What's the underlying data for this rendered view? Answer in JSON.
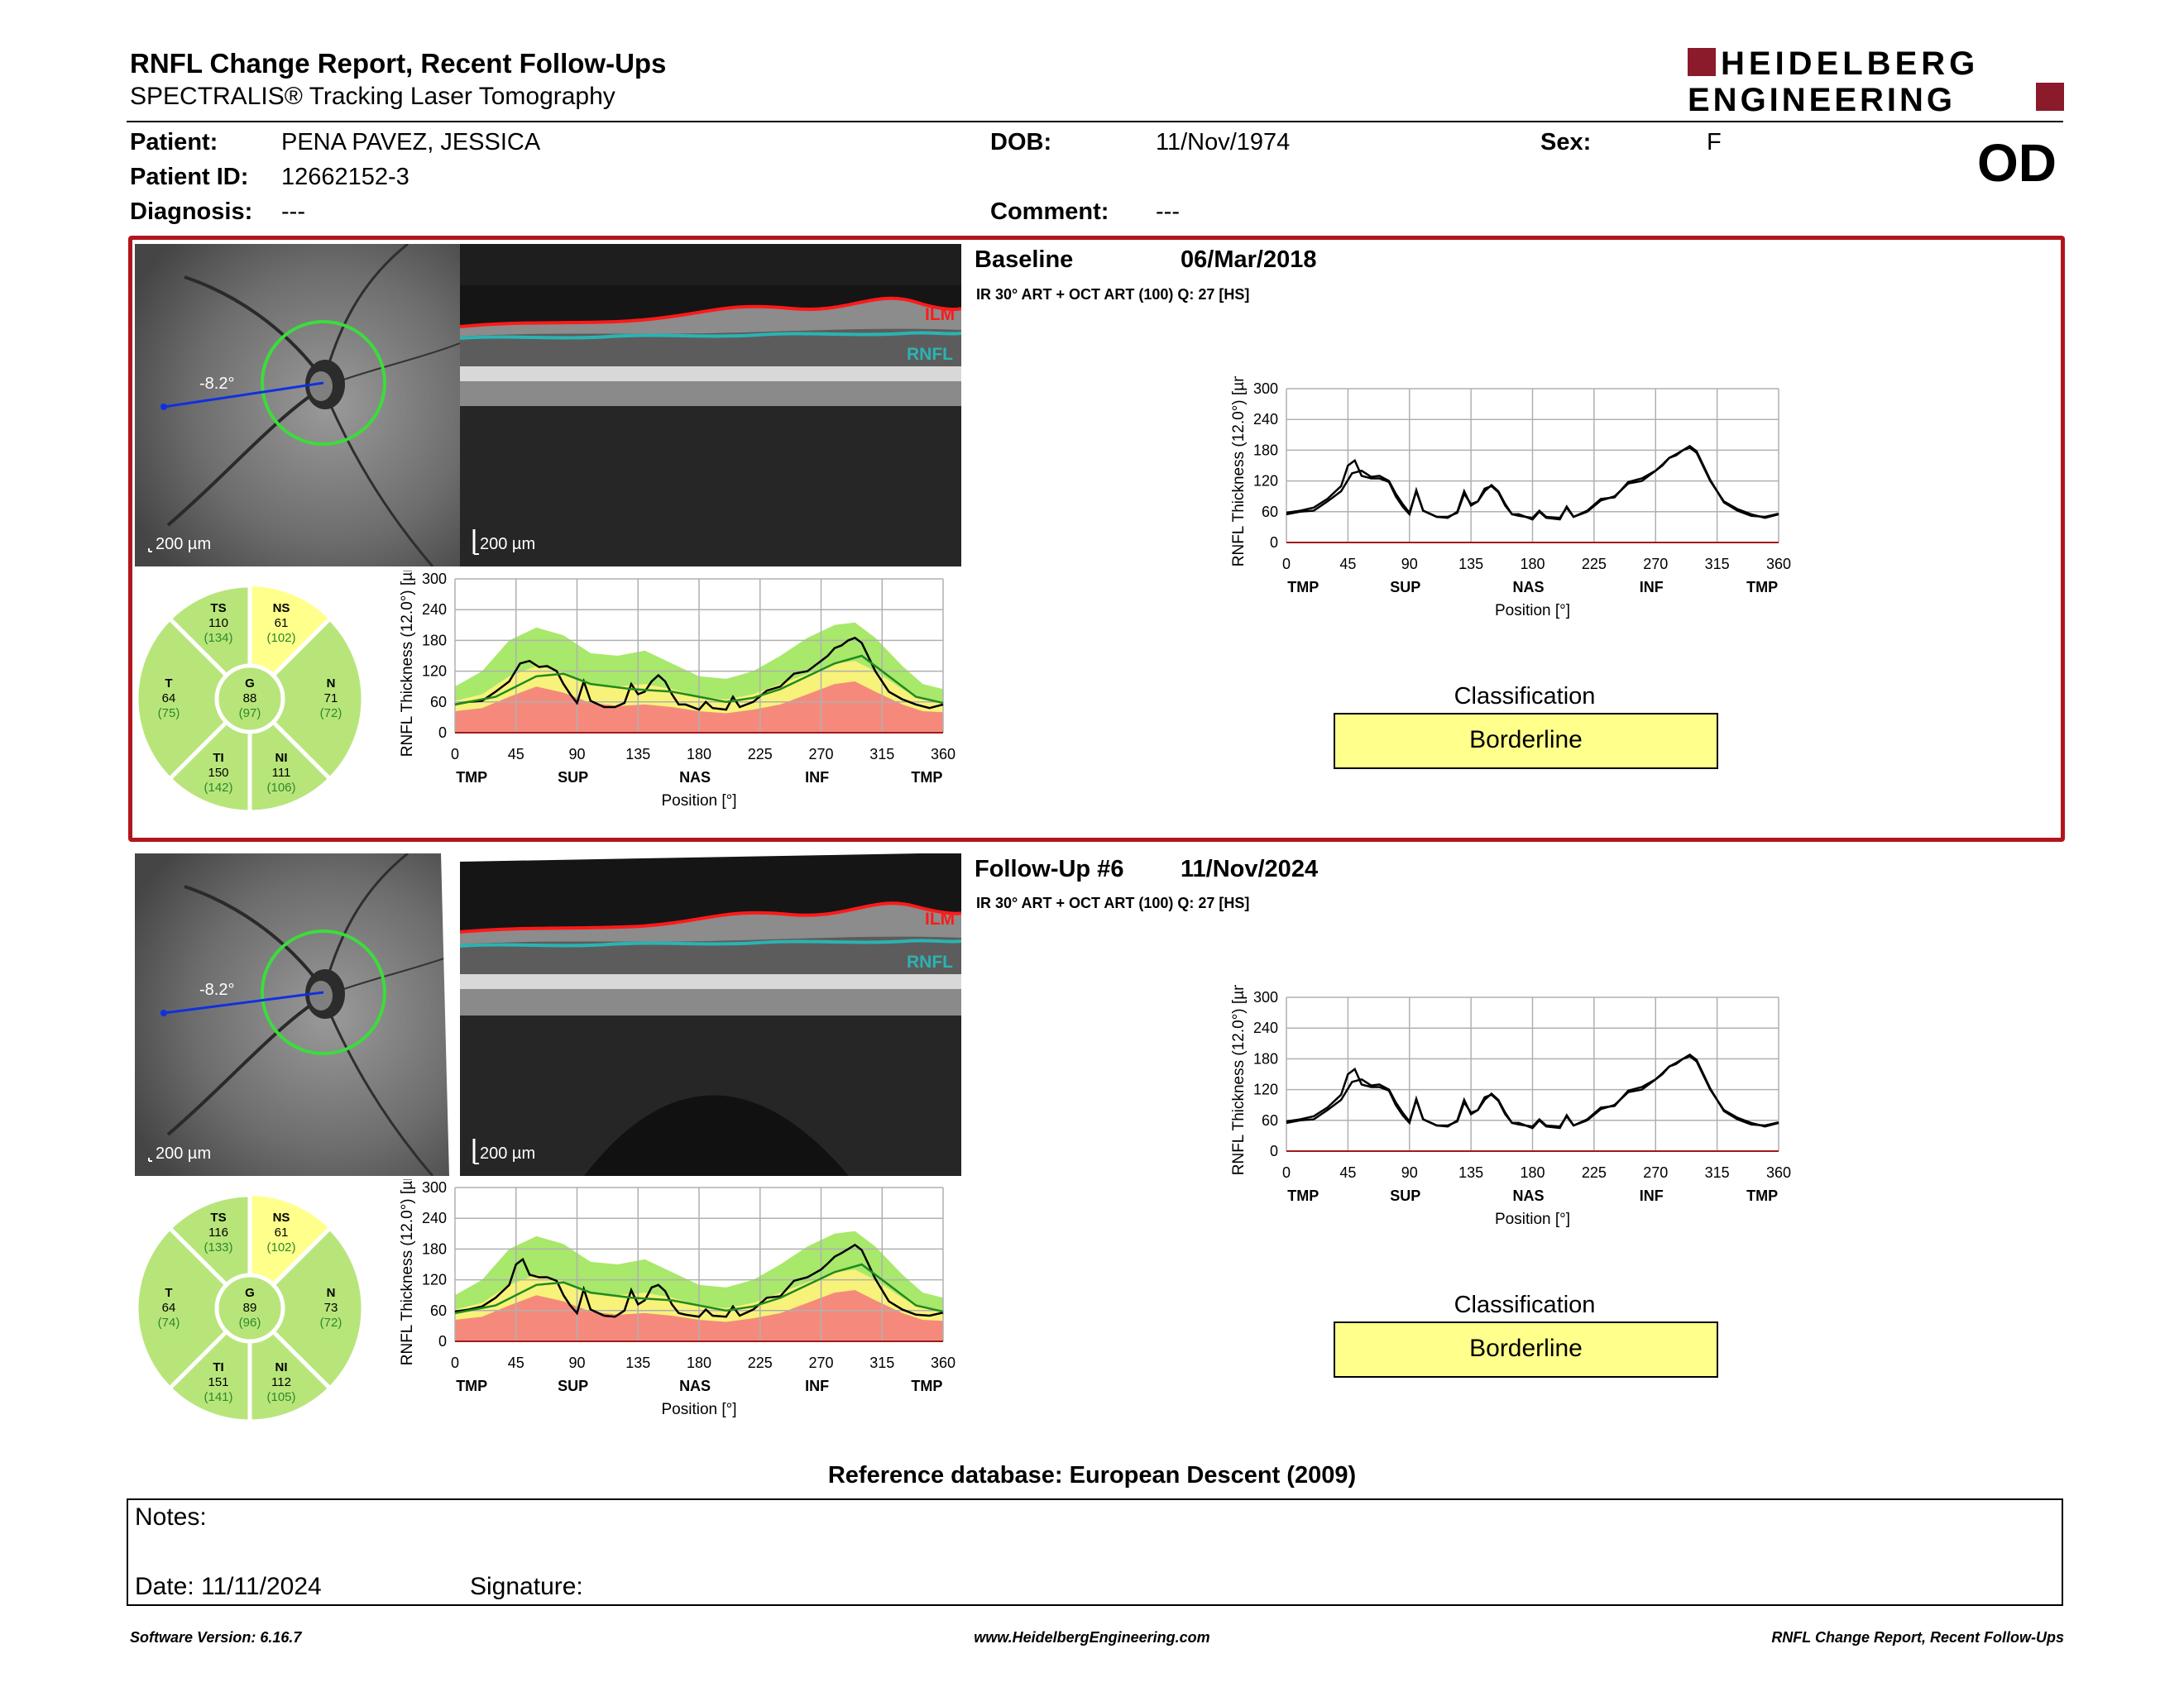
{
  "report": {
    "title": "RNFL Change Report, Recent Follow-Ups",
    "subtitle": "SPECTRALIS® Tracking Laser Tomography",
    "eye": "OD"
  },
  "brand": {
    "line1": "HEIDELBERG",
    "line2": "ENGINEERING",
    "accent": "#8b1a2b"
  },
  "patient": {
    "name_label": "Patient:",
    "name": "PENA PAVEZ, JESSICA",
    "id_label": "Patient ID:",
    "id": "12662152-3",
    "diagnosis_label": "Diagnosis:",
    "diagnosis": "---",
    "dob_label": "DOB:",
    "dob": "11/Nov/1974",
    "comment_label": "Comment:",
    "comment": "---",
    "sex_label": "Sex:",
    "sex": "F"
  },
  "exams": [
    {
      "heading": "Baseline",
      "date": "06/Mar/2018",
      "acq": "IR 30° ART + OCT ART (100) Q: 27 [HS]",
      "angle": "-8.2°",
      "scale_fundus": "200 µm",
      "scale_bscan": "200 µm",
      "ilm": "ILM",
      "rnfl": "RNFL",
      "sectors": {
        "TS": {
          "label": "TS",
          "value": "110",
          "ref": "(134)",
          "color": "#b8e57a"
        },
        "NS": {
          "label": "NS",
          "value": "61",
          "ref": "(102)",
          "color": "#ffff8c"
        },
        "T": {
          "label": "T",
          "value": "64",
          "ref": "(75)",
          "color": "#b8e57a"
        },
        "G": {
          "label": "G",
          "value": "88",
          "ref": "(97)",
          "color": "#b8e57a"
        },
        "N": {
          "label": "N",
          "value": "71",
          "ref": "(72)",
          "color": "#b8e57a"
        },
        "TI": {
          "label": "TI",
          "value": "150",
          "ref": "(142)",
          "color": "#b8e57a"
        },
        "NI": {
          "label": "NI",
          "value": "111",
          "ref": "(106)",
          "color": "#b8e57a"
        }
      },
      "classification_title": "Classification",
      "classification": "Borderline",
      "classification_color": "#ffff8c"
    },
    {
      "heading": "Follow-Up #6",
      "date": "11/Nov/2024",
      "acq": "IR 30° ART + OCT ART (100) Q: 27 [HS]",
      "angle": "-8.2°",
      "scale_fundus": "200 µm",
      "scale_bscan": "200 µm",
      "ilm": "ILM",
      "rnfl": "RNFL",
      "sectors": {
        "TS": {
          "label": "TS",
          "value": "116",
          "ref": "(133)",
          "color": "#b8e57a"
        },
        "NS": {
          "label": "NS",
          "value": "61",
          "ref": "(102)",
          "color": "#ffff8c"
        },
        "T": {
          "label": "T",
          "value": "64",
          "ref": "(74)",
          "color": "#b8e57a"
        },
        "G": {
          "label": "G",
          "value": "89",
          "ref": "(96)",
          "color": "#b8e57a"
        },
        "N": {
          "label": "N",
          "value": "73",
          "ref": "(72)",
          "color": "#b8e57a"
        },
        "TI": {
          "label": "TI",
          "value": "151",
          "ref": "(141)",
          "color": "#b8e57a"
        },
        "NI": {
          "label": "NI",
          "value": "112",
          "ref": "(105)",
          "color": "#b8e57a"
        }
      },
      "classification_title": "Classification",
      "classification": "Borderline",
      "classification_color": "#ffff8c"
    }
  ],
  "chart_data": [
    {
      "type": "line",
      "ylabel": "RNFL Thickness (12.0°) [µm]",
      "xlabel": "Position [°]",
      "xticks": [
        0,
        45,
        90,
        135,
        180,
        225,
        270,
        315,
        360
      ],
      "yticks": [
        0,
        60,
        120,
        180,
        240,
        300
      ],
      "region_labels": [
        {
          "x": 5,
          "t": "TMP"
        },
        {
          "x": 87,
          "t": "SUP"
        },
        {
          "x": 177,
          "t": "NAS"
        },
        {
          "x": 267,
          "t": "INF"
        },
        {
          "x": 348,
          "t": "TMP"
        }
      ],
      "xlim": [
        0,
        360
      ],
      "ylim": [
        0,
        300
      ],
      "bands": {
        "x": [
          0,
          20,
          40,
          60,
          80,
          100,
          120,
          140,
          160,
          180,
          200,
          220,
          240,
          260,
          280,
          295,
          310,
          330,
          345,
          360
        ],
        "upper_green": [
          90,
          120,
          180,
          205,
          190,
          155,
          150,
          160,
          135,
          110,
          105,
          120,
          150,
          185,
          210,
          215,
          185,
          130,
          95,
          85
        ],
        "upper_yellow": [
          62,
          75,
          110,
          130,
          118,
          95,
          90,
          95,
          85,
          70,
          65,
          75,
          95,
          115,
          135,
          140,
          120,
          85,
          65,
          60
        ],
        "red": [
          42,
          48,
          70,
          90,
          78,
          58,
          52,
          55,
          50,
          42,
          38,
          45,
          55,
          75,
          95,
          100,
          80,
          55,
          42,
          40
        ]
      },
      "series": [
        {
          "name": "Baseline",
          "color": "#000000",
          "x": [
            0,
            10,
            20,
            30,
            40,
            48,
            55,
            62,
            68,
            75,
            80,
            85,
            90,
            95,
            100,
            110,
            118,
            125,
            130,
            135,
            140,
            145,
            150,
            155,
            160,
            165,
            170,
            180,
            185,
            190,
            200,
            205,
            210,
            220,
            230,
            240,
            250,
            260,
            270,
            275,
            280,
            285,
            290,
            295,
            300,
            310,
            320,
            330,
            340,
            350,
            360
          ],
          "y": [
            55,
            60,
            62,
            80,
            100,
            135,
            140,
            128,
            130,
            120,
            95,
            75,
            58,
            100,
            62,
            50,
            50,
            58,
            95,
            75,
            80,
            100,
            112,
            100,
            75,
            55,
            55,
            45,
            60,
            48,
            45,
            70,
            50,
            60,
            82,
            90,
            115,
            120,
            140,
            150,
            165,
            170,
            180,
            185,
            175,
            120,
            80,
            65,
            55,
            48,
            55
          ]
        },
        {
          "name": "Normal",
          "color": "#1f8a1f",
          "x": [
            0,
            30,
            60,
            80,
            100,
            130,
            160,
            180,
            200,
            220,
            240,
            260,
            280,
            300,
            320,
            340,
            360
          ],
          "y": [
            55,
            70,
            110,
            115,
            95,
            85,
            80,
            70,
            60,
            68,
            85,
            110,
            135,
            150,
            110,
            70,
            58
          ]
        }
      ]
    },
    {
      "type": "line",
      "ylabel": "RNFL Thickness (12.0°) [µm]",
      "xlabel": "Position [°]",
      "xticks": [
        0,
        45,
        90,
        135,
        180,
        225,
        270,
        315,
        360
      ],
      "yticks": [
        0,
        60,
        120,
        180,
        240,
        300
      ],
      "region_labels": [
        {
          "x": 5,
          "t": "TMP"
        },
        {
          "x": 87,
          "t": "SUP"
        },
        {
          "x": 177,
          "t": "NAS"
        },
        {
          "x": 267,
          "t": "INF"
        },
        {
          "x": 348,
          "t": "TMP"
        }
      ],
      "xlim": [
        0,
        360
      ],
      "ylim": [
        0,
        300
      ],
      "series": [
        {
          "name": "Baseline",
          "color": "#000000",
          "x": [
            0,
            10,
            20,
            30,
            40,
            48,
            55,
            62,
            68,
            75,
            80,
            85,
            90,
            95,
            100,
            110,
            118,
            125,
            130,
            135,
            140,
            145,
            150,
            155,
            160,
            165,
            170,
            180,
            185,
            190,
            200,
            205,
            210,
            220,
            230,
            240,
            250,
            260,
            270,
            275,
            280,
            285,
            290,
            295,
            300,
            310,
            320,
            330,
            340,
            350,
            360
          ],
          "y": [
            55,
            60,
            62,
            80,
            100,
            135,
            140,
            128,
            130,
            120,
            95,
            75,
            58,
            100,
            62,
            50,
            50,
            58,
            95,
            75,
            80,
            100,
            112,
            100,
            75,
            55,
            55,
            45,
            60,
            48,
            45,
            70,
            50,
            60,
            82,
            90,
            115,
            120,
            140,
            150,
            165,
            170,
            180,
            185,
            175,
            120,
            80,
            65,
            55,
            48,
            55
          ]
        },
        {
          "name": "Follow-Up #6",
          "color": "#000000",
          "x": [
            0,
            10,
            20,
            30,
            40,
            45,
            50,
            55,
            62,
            68,
            75,
            80,
            85,
            90,
            95,
            100,
            110,
            118,
            125,
            130,
            135,
            140,
            145,
            150,
            155,
            160,
            165,
            170,
            180,
            185,
            190,
            200,
            205,
            210,
            220,
            230,
            240,
            250,
            260,
            270,
            275,
            280,
            285,
            290,
            295,
            300,
            310,
            320,
            330,
            340,
            350,
            360
          ],
          "y": [
            58,
            62,
            68,
            85,
            110,
            150,
            160,
            130,
            125,
            125,
            118,
            90,
            70,
            55,
            102,
            62,
            50,
            48,
            60,
            100,
            72,
            80,
            105,
            110,
            98,
            72,
            55,
            52,
            48,
            62,
            50,
            48,
            68,
            50,
            62,
            85,
            88,
            118,
            125,
            140,
            152,
            165,
            172,
            180,
            188,
            178,
            122,
            78,
            62,
            52,
            50,
            56
          ]
        }
      ]
    },
    {
      "type": "line",
      "ylabel": "RNFL Thickness (12.0°) [µm]",
      "xlabel": "Position [°]",
      "xticks": [
        0,
        45,
        90,
        135,
        180,
        225,
        270,
        315,
        360
      ],
      "yticks": [
        0,
        60,
        120,
        180,
        240,
        300
      ],
      "region_labels": [
        {
          "x": 5,
          "t": "TMP"
        },
        {
          "x": 87,
          "t": "SUP"
        },
        {
          "x": 177,
          "t": "NAS"
        },
        {
          "x": 267,
          "t": "INF"
        },
        {
          "x": 348,
          "t": "TMP"
        }
      ],
      "xlim": [
        0,
        360
      ],
      "ylim": [
        0,
        300
      ],
      "bands": {
        "x": [
          0,
          20,
          40,
          60,
          80,
          100,
          120,
          140,
          160,
          180,
          200,
          220,
          240,
          260,
          280,
          295,
          310,
          330,
          345,
          360
        ],
        "upper_green": [
          90,
          120,
          180,
          205,
          190,
          155,
          150,
          160,
          135,
          110,
          105,
          120,
          150,
          185,
          210,
          215,
          185,
          130,
          95,
          85
        ],
        "upper_yellow": [
          62,
          75,
          110,
          130,
          118,
          95,
          90,
          95,
          85,
          70,
          65,
          75,
          95,
          115,
          135,
          140,
          120,
          85,
          65,
          60
        ],
        "red": [
          42,
          48,
          70,
          90,
          78,
          58,
          52,
          55,
          50,
          42,
          38,
          45,
          55,
          75,
          95,
          100,
          80,
          55,
          42,
          40
        ]
      },
      "series": [
        {
          "name": "Follow-Up #6",
          "color": "#000000",
          "x": [
            0,
            10,
            20,
            30,
            40,
            45,
            50,
            55,
            62,
            68,
            75,
            80,
            85,
            90,
            95,
            100,
            110,
            118,
            125,
            130,
            135,
            140,
            145,
            150,
            155,
            160,
            165,
            170,
            180,
            185,
            190,
            200,
            205,
            210,
            220,
            230,
            240,
            250,
            260,
            270,
            275,
            280,
            285,
            290,
            295,
            300,
            310,
            320,
            330,
            340,
            350,
            360
          ],
          "y": [
            58,
            62,
            68,
            85,
            110,
            150,
            160,
            130,
            125,
            125,
            118,
            90,
            70,
            55,
            102,
            62,
            50,
            48,
            60,
            100,
            72,
            80,
            105,
            110,
            98,
            72,
            55,
            52,
            48,
            62,
            50,
            48,
            68,
            50,
            62,
            85,
            88,
            118,
            125,
            140,
            152,
            165,
            172,
            180,
            188,
            178,
            122,
            78,
            62,
            52,
            50,
            56
          ]
        },
        {
          "name": "Normal",
          "color": "#1f8a1f",
          "x": [
            0,
            30,
            60,
            80,
            100,
            130,
            160,
            180,
            200,
            220,
            240,
            260,
            280,
            300,
            320,
            340,
            360
          ],
          "y": [
            55,
            70,
            110,
            115,
            95,
            85,
            80,
            70,
            60,
            68,
            85,
            110,
            135,
            150,
            110,
            70,
            58
          ]
        }
      ]
    }
  ],
  "reference_db": "Reference database: European Descent (2009)",
  "notes": {
    "label": "Notes:",
    "date": "Date: 11/11/2024",
    "signature": "Signature:"
  },
  "footer": {
    "left": "Software Version: 6.16.7",
    "center": "www.HeidelbergEngineering.com",
    "right": "RNFL Change Report, Recent Follow-Ups"
  }
}
